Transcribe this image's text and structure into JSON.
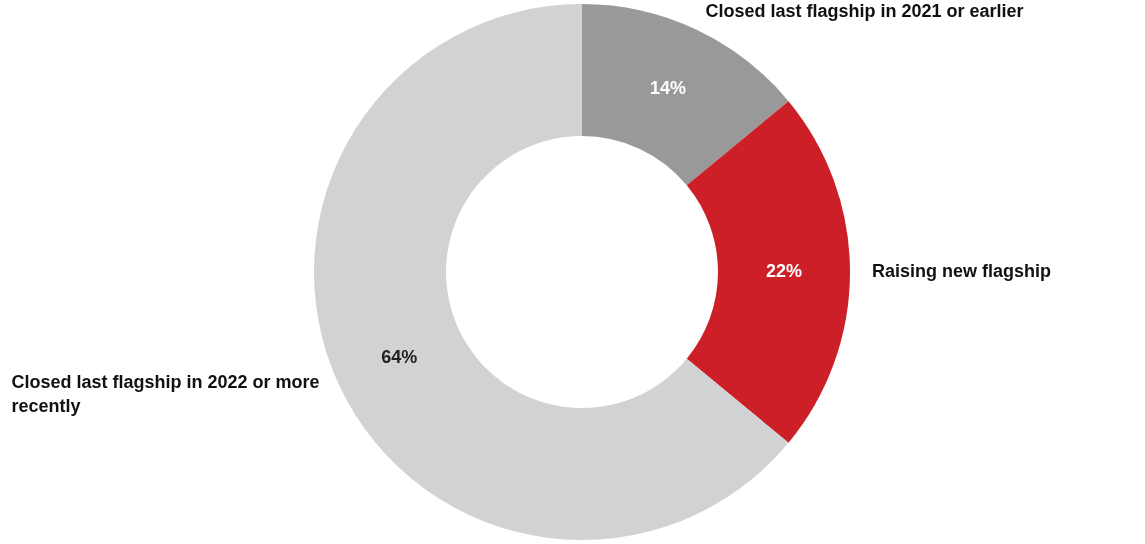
{
  "chart_data": {
    "type": "donut",
    "categories": [
      "Closed last flagship in 2021 or earlier",
      "Raising new flagship",
      "Closed last flagship in 2022 or more recently"
    ],
    "values": [
      14,
      22,
      64
    ],
    "colors": [
      "#999999",
      "#cc1f27",
      "#d1d2d4"
    ],
    "value_labels": [
      "14%",
      "22%",
      "64%"
    ],
    "legend": false
  }
}
